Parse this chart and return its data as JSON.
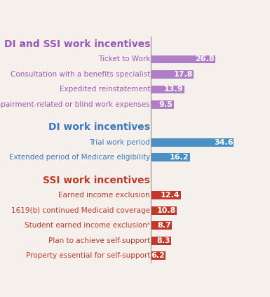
{
  "background_color": "#f5f0eb",
  "sections": [
    {
      "title": "DI and SSI work incentives",
      "title_color": "#9b59b6",
      "title_underline": true,
      "bar_color": "#b07ec8",
      "items": [
        {
          "label": "Ticket to Work",
          "value": 26.8
        },
        {
          "label": "Consultation with a benefits specialist",
          "value": 17.8
        },
        {
          "label": "Expedited reinstatement",
          "value": 13.9
        },
        {
          "label": "Impairment-related or blind work expenses",
          "value": 9.5
        }
      ]
    },
    {
      "title": "DI work incentives",
      "title_color": "#3a7abf",
      "title_underline": true,
      "bar_color": "#4a90c4",
      "items": [
        {
          "label": "Trial work period",
          "value": 34.6
        },
        {
          "label": "Extended period of Medicare eligibility",
          "value": 16.2
        }
      ]
    },
    {
      "title": "SSI work incentives",
      "title_color": "#c0392b",
      "title_underline": true,
      "bar_color": "#c0392b",
      "items": [
        {
          "label": "Earned income exclusion",
          "value": 12.4
        },
        {
          "label": "1619(b) continued Medicaid coverage",
          "value": 10.8
        },
        {
          "label": "Student earned income exclusionᵃ",
          "value": 8.7
        },
        {
          "label": "Plan to achieve self-support",
          "value": 8.3
        },
        {
          "label": "Property essential for self-support",
          "value": 6.2
        }
      ]
    }
  ],
  "xlim": [
    0,
    38
  ],
  "bar_height": 0.55,
  "value_fontsize": 8,
  "label_fontsize": 7.5,
  "title_fontsize": 10
}
